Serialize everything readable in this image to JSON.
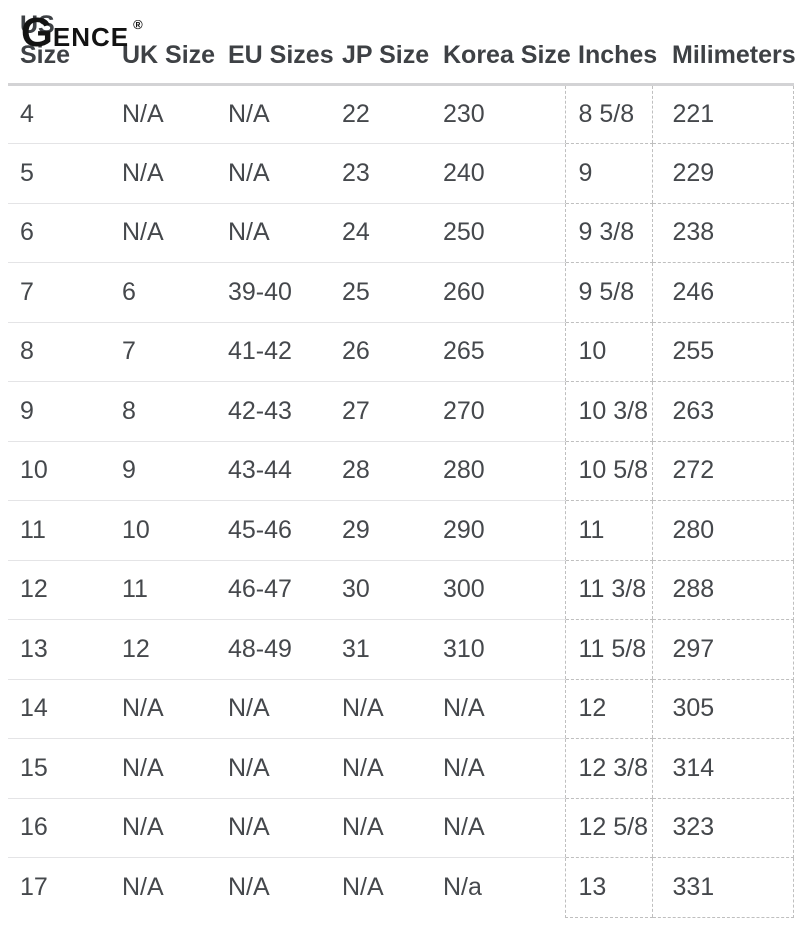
{
  "brand": {
    "initial": "G",
    "rest": "ENCE",
    "trademark": "®"
  },
  "table": {
    "headers": [
      "US Size",
      "UK Size",
      "EU Sizes",
      "JP Size",
      "Korea Size",
      "Inches",
      "Milimeters"
    ],
    "rows": [
      [
        "4",
        "N/A",
        "N/A",
        "22",
        "230",
        "8 5/8",
        "221"
      ],
      [
        "5",
        "N/A",
        "N/A",
        "23",
        "240",
        "9",
        "229"
      ],
      [
        "6",
        "N/A",
        "N/A",
        "24",
        "250",
        "9 3/8",
        "238"
      ],
      [
        "7",
        "6",
        "39-40",
        "25",
        "260",
        "9 5/8",
        "246"
      ],
      [
        "8",
        "7",
        "41-42",
        "26",
        "265",
        "10",
        "255"
      ],
      [
        "9",
        "8",
        "42-43",
        "27",
        "270",
        "10 3/8",
        "263"
      ],
      [
        "10",
        "9",
        "43-44",
        "28",
        "280",
        "10 5/8",
        "272"
      ],
      [
        "11",
        "10",
        "45-46",
        "29",
        "290",
        "11",
        "280"
      ],
      [
        "12",
        "11",
        "46-47",
        "30",
        "300",
        "11 3/8",
        "288"
      ],
      [
        "13",
        "12",
        "48-49",
        "31",
        "310",
        "11 5/8",
        "297"
      ],
      [
        "14",
        "N/A",
        "N/A",
        "N/A",
        "N/A",
        "12",
        "305"
      ],
      [
        "15",
        "N/A",
        "N/A",
        "N/A",
        "N/A",
        "12 3/8",
        "314"
      ],
      [
        "16",
        "N/A",
        "N/A",
        "N/A",
        "N/A",
        "12 5/8",
        "323"
      ],
      [
        "17",
        "N/A",
        "N/A",
        "N/A",
        "N/a",
        "13",
        "331"
      ]
    ]
  },
  "colors": {
    "cell_text": "#45484c",
    "header_text": "#3e4145",
    "row_separator": "#e4e4e6",
    "header_separator": "#d3d3d5",
    "dashed_border": "#bfbfbf",
    "brand_black": "#131313",
    "background": "#ffffff"
  }
}
